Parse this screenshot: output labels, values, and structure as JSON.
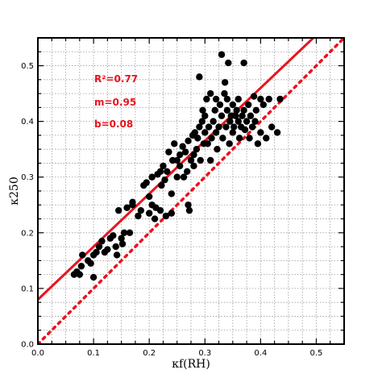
{
  "chart_data": {
    "type": "scatter",
    "xlabel": "κf(RH)",
    "ylabel": "κ250",
    "xlim": [
      0.0,
      0.55
    ],
    "ylim": [
      0.0,
      0.55
    ],
    "xticks": [
      "0.0",
      "0.1",
      "0.2",
      "0.3",
      "0.4",
      "0.5"
    ],
    "yticks": [
      "0.0",
      "0.1",
      "0.2",
      "0.3",
      "0.4",
      "0.5"
    ],
    "grid": true,
    "annotations": [
      "R²=0.77",
      "m=0.95",
      "b=0.08"
    ],
    "colors": {
      "points": "#000000",
      "fit_line": "#e8141e",
      "one_to_one": "#e8141e"
    },
    "fit_line": {
      "slope": 0.95,
      "intercept": 0.08,
      "style": "solid"
    },
    "one_to_one_line": {
      "slope": 1.0,
      "intercept": 0.0,
      "style": "dotted"
    },
    "points": [
      [
        0.065,
        0.125
      ],
      [
        0.07,
        0.13
      ],
      [
        0.075,
        0.125
      ],
      [
        0.078,
        0.14
      ],
      [
        0.08,
        0.16
      ],
      [
        0.09,
        0.15
      ],
      [
        0.095,
        0.145
      ],
      [
        0.1,
        0.12
      ],
      [
        0.1,
        0.16
      ],
      [
        0.105,
        0.165
      ],
      [
        0.11,
        0.175
      ],
      [
        0.115,
        0.185
      ],
      [
        0.12,
        0.165
      ],
      [
        0.125,
        0.17
      ],
      [
        0.13,
        0.19
      ],
      [
        0.135,
        0.195
      ],
      [
        0.14,
        0.175
      ],
      [
        0.142,
        0.16
      ],
      [
        0.145,
        0.24
      ],
      [
        0.15,
        0.19
      ],
      [
        0.152,
        0.18
      ],
      [
        0.155,
        0.2
      ],
      [
        0.16,
        0.245
      ],
      [
        0.165,
        0.2
      ],
      [
        0.17,
        0.25
      ],
      [
        0.17,
        0.255
      ],
      [
        0.18,
        0.23
      ],
      [
        0.185,
        0.24
      ],
      [
        0.19,
        0.285
      ],
      [
        0.195,
        0.29
      ],
      [
        0.2,
        0.265
      ],
      [
        0.2,
        0.235
      ],
      [
        0.205,
        0.25
      ],
      [
        0.205,
        0.3
      ],
      [
        0.21,
        0.225
      ],
      [
        0.212,
        0.245
      ],
      [
        0.215,
        0.305
      ],
      [
        0.22,
        0.24
      ],
      [
        0.22,
        0.31
      ],
      [
        0.222,
        0.285
      ],
      [
        0.225,
        0.32
      ],
      [
        0.228,
        0.295
      ],
      [
        0.23,
        0.23
      ],
      [
        0.232,
        0.31
      ],
      [
        0.235,
        0.345
      ],
      [
        0.24,
        0.27
      ],
      [
        0.24,
        0.235
      ],
      [
        0.242,
        0.33
      ],
      [
        0.245,
        0.36
      ],
      [
        0.25,
        0.3
      ],
      [
        0.25,
        0.33
      ],
      [
        0.255,
        0.32
      ],
      [
        0.255,
        0.34
      ],
      [
        0.26,
        0.355
      ],
      [
        0.262,
        0.3
      ],
      [
        0.265,
        0.345
      ],
      [
        0.268,
        0.31
      ],
      [
        0.27,
        0.25
      ],
      [
        0.27,
        0.365
      ],
      [
        0.272,
        0.24
      ],
      [
        0.275,
        0.33
      ],
      [
        0.278,
        0.375
      ],
      [
        0.28,
        0.32
      ],
      [
        0.28,
        0.34
      ],
      [
        0.282,
        0.38
      ],
      [
        0.285,
        0.35
      ],
      [
        0.287,
        0.37
      ],
      [
        0.29,
        0.48
      ],
      [
        0.29,
        0.39
      ],
      [
        0.292,
        0.33
      ],
      [
        0.295,
        0.4
      ],
      [
        0.296,
        0.42
      ],
      [
        0.298,
        0.36
      ],
      [
        0.3,
        0.38
      ],
      [
        0.3,
        0.41
      ],
      [
        0.303,
        0.44
      ],
      [
        0.305,
        0.36
      ],
      [
        0.307,
        0.39
      ],
      [
        0.31,
        0.33
      ],
      [
        0.31,
        0.45
      ],
      [
        0.312,
        0.37
      ],
      [
        0.315,
        0.4
      ],
      [
        0.318,
        0.42
      ],
      [
        0.32,
        0.44
      ],
      [
        0.32,
        0.38
      ],
      [
        0.322,
        0.35
      ],
      [
        0.325,
        0.39
      ],
      [
        0.327,
        0.43
      ],
      [
        0.33,
        0.52
      ],
      [
        0.33,
        0.41
      ],
      [
        0.332,
        0.37
      ],
      [
        0.335,
        0.45
      ],
      [
        0.336,
        0.47
      ],
      [
        0.338,
        0.39
      ],
      [
        0.34,
        0.42
      ],
      [
        0.34,
        0.44
      ],
      [
        0.342,
        0.505
      ],
      [
        0.344,
        0.36
      ],
      [
        0.345,
        0.4
      ],
      [
        0.347,
        0.41
      ],
      [
        0.35,
        0.43
      ],
      [
        0.35,
        0.38
      ],
      [
        0.352,
        0.39
      ],
      [
        0.355,
        0.41
      ],
      [
        0.357,
        0.42
      ],
      [
        0.36,
        0.4
      ],
      [
        0.36,
        0.44
      ],
      [
        0.362,
        0.37
      ],
      [
        0.365,
        0.39
      ],
      [
        0.367,
        0.41
      ],
      [
        0.37,
        0.42
      ],
      [
        0.37,
        0.505
      ],
      [
        0.372,
        0.385
      ],
      [
        0.375,
        0.4
      ],
      [
        0.378,
        0.43
      ],
      [
        0.38,
        0.37
      ],
      [
        0.382,
        0.41
      ],
      [
        0.385,
        0.39
      ],
      [
        0.388,
        0.445
      ],
      [
        0.39,
        0.4
      ],
      [
        0.392,
        0.42
      ],
      [
        0.395,
        0.36
      ],
      [
        0.4,
        0.38
      ],
      [
        0.4,
        0.44
      ],
      [
        0.405,
        0.43
      ],
      [
        0.41,
        0.37
      ],
      [
        0.415,
        0.44
      ],
      [
        0.42,
        0.39
      ],
      [
        0.43,
        0.38
      ],
      [
        0.435,
        0.44
      ]
    ]
  }
}
